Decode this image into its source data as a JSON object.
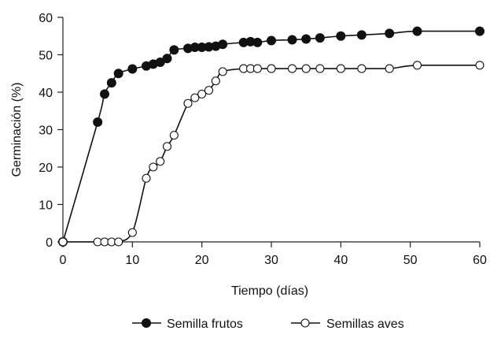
{
  "chart_data": {
    "type": "line",
    "title": "",
    "xlabel": "Tiempo (días)",
    "ylabel": "Germinación (%)",
    "xlim": [
      0,
      60
    ],
    "ylim": [
      0,
      60
    ],
    "x_ticks": [
      0,
      10,
      20,
      30,
      40,
      50,
      60
    ],
    "y_ticks": [
      0,
      10,
      20,
      30,
      40,
      50,
      60
    ],
    "grid": false,
    "legend_position": "bottom",
    "series": [
      {
        "name": "Semilla frutos",
        "marker": "filled-circle",
        "color": "#111111",
        "x": [
          0,
          5,
          6,
          7,
          8,
          10,
          12,
          13,
          14,
          15,
          16,
          18,
          19,
          20,
          21,
          22,
          23,
          26,
          27,
          28,
          30,
          33,
          35,
          37,
          40,
          43,
          47,
          51,
          60
        ],
        "y": [
          0,
          32,
          39.5,
          42.5,
          45,
          46.2,
          47,
          47.5,
          48,
          49,
          51.3,
          51.7,
          52,
          52,
          52.1,
          52.3,
          52.8,
          53.3,
          53.5,
          53.3,
          53.8,
          54,
          54.2,
          54.5,
          55,
          55.3,
          55.7,
          56.3,
          56.3
        ]
      },
      {
        "name": "Semillas aves",
        "marker": "open-circle",
        "color": "#111111",
        "x": [
          0,
          5,
          6,
          7,
          8,
          10,
          12,
          13,
          14,
          15,
          16,
          18,
          19,
          20,
          21,
          22,
          23,
          26,
          27,
          28,
          30,
          33,
          35,
          37,
          40,
          43,
          47,
          51,
          60
        ],
        "y": [
          0,
          0,
          0,
          0,
          0,
          2.5,
          17,
          20,
          21.5,
          25.5,
          28.5,
          37,
          38.5,
          39.5,
          40.5,
          43,
          45.5,
          46.3,
          46.3,
          46.3,
          46.3,
          46.3,
          46.3,
          46.3,
          46.3,
          46.3,
          46.3,
          47.2,
          47.2
        ]
      }
    ]
  }
}
